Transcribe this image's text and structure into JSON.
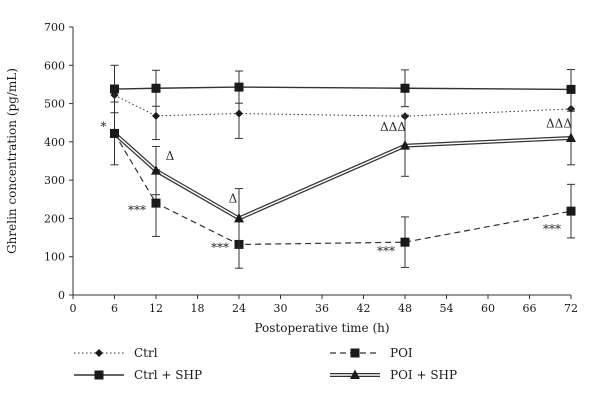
{
  "chart_data": {
    "type": "line",
    "xlabel": "Postoperative time (h)",
    "ylabel": "Ghrelin concentration (pg/mL)",
    "xlim": [
      0,
      72
    ],
    "ylim": [
      0,
      700
    ],
    "x_ticks": [
      0,
      6,
      12,
      18,
      24,
      30,
      36,
      42,
      48,
      54,
      60,
      66,
      72
    ],
    "y_ticks": [
      0,
      100,
      200,
      300,
      400,
      500,
      600,
      700
    ],
    "grid": false,
    "legend_position": "bottom",
    "series": [
      {
        "name": "Ctrl",
        "marker": "diamond",
        "line": "dotted",
        "x": [
          6,
          12,
          24,
          48,
          72
        ],
        "y": [
          522,
          468,
          474,
          467,
          486
        ],
        "err": [
          0,
          62,
          65,
          0,
          0
        ]
      },
      {
        "name": "Ctrl + SHP",
        "marker": "square",
        "line": "solid",
        "x": [
          6,
          12,
          24,
          48,
          72
        ],
        "y": [
          538,
          540,
          543,
          540,
          537
        ],
        "err": [
          62,
          47,
          42,
          48,
          52
        ]
      },
      {
        "name": "POI",
        "marker": "square",
        "line": "dashed",
        "x": [
          6,
          12,
          24,
          48,
          72
        ],
        "y": [
          422,
          240,
          132,
          138,
          219
        ],
        "err": [
          82,
          87,
          62,
          66,
          70
        ]
      },
      {
        "name": "POI + SHP",
        "marker": "triangle",
        "line": "double",
        "x": [
          6,
          12,
          24,
          48,
          72
        ],
        "y": [
          422,
          325,
          200,
          390,
          410
        ],
        "err": [
          0,
          63,
          78,
          80,
          70
        ]
      }
    ],
    "annotations": [
      {
        "text": "*",
        "x": 6,
        "y": 430
      },
      {
        "text": "***",
        "x": 12,
        "y": 212
      },
      {
        "text": "Δ",
        "x": 12,
        "y": 352
      },
      {
        "text": "***",
        "x": 24,
        "y": 114
      },
      {
        "text": "Δ",
        "x": 24,
        "y": 242
      },
      {
        "text": "ΔΔΔ",
        "x": 48,
        "y": 428
      },
      {
        "text": "***",
        "x": 48,
        "y": 104
      },
      {
        "text": "ΔΔΔ",
        "x": 72,
        "y": 437
      },
      {
        "text": "***",
        "x": 72,
        "y": 162
      }
    ]
  }
}
